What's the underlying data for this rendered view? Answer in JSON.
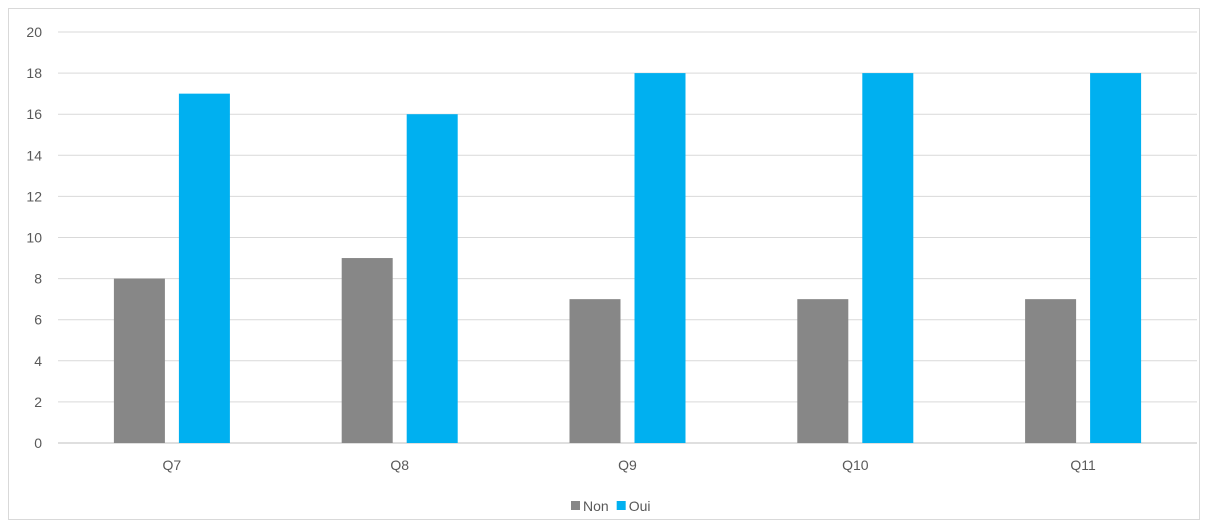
{
  "chart_data": {
    "type": "bar",
    "categories": [
      "Q7",
      "Q8",
      "Q9",
      "Q10",
      "Q11"
    ],
    "series": [
      {
        "name": "Non",
        "values": [
          8,
          9,
          7,
          7,
          7
        ],
        "color": "#878787"
      },
      {
        "name": "Oui",
        "values": [
          17,
          16,
          18,
          18,
          18
        ],
        "color": "#00b0f0"
      }
    ],
    "ylim": [
      0,
      20
    ],
    "yticks": [
      0,
      2,
      4,
      6,
      8,
      10,
      12,
      14,
      16,
      18,
      20
    ],
    "grid": true,
    "legend": "bottom-center",
    "title": "",
    "xlabel": "",
    "ylabel": ""
  }
}
